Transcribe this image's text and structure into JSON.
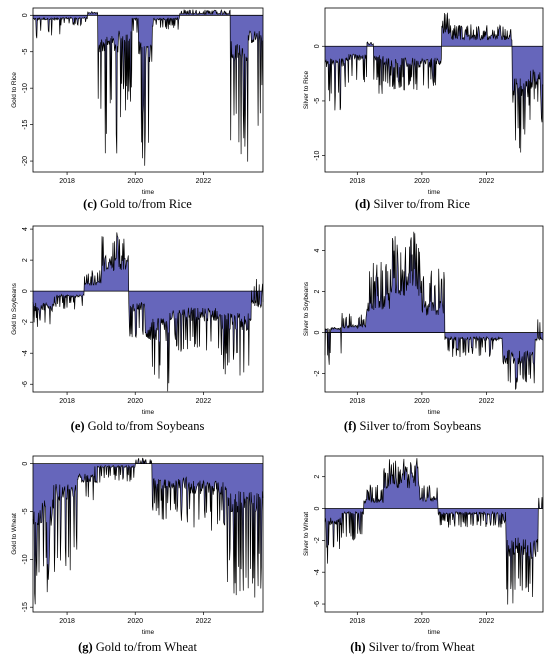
{
  "colors": {
    "fill": "#6666BB",
    "line": "#000000",
    "frame": "#000000"
  },
  "chart_data": [
    {
      "id": "c",
      "type": "area",
      "caption_letter": "(c)",
      "caption_text": "Gold to/from Rice",
      "ylabel": "Gold to Rice",
      "xlabel": "time",
      "x_ticks": [
        2018,
        2020,
        2022
      ],
      "y_ticks": [
        0,
        -5,
        -10,
        -15,
        -20
      ],
      "xlim": [
        2017,
        2023.75
      ],
      "ylim": [
        -21.5,
        1
      ],
      "segments": [
        {
          "from": 2017.0,
          "to": 2017.8,
          "base": -0.5,
          "spike": -3.5
        },
        {
          "from": 2017.8,
          "to": 2018.6,
          "base": -0.4,
          "spike": -1.5
        },
        {
          "from": 2018.6,
          "to": 2018.9,
          "base": 0.3,
          "spike": 0.5
        },
        {
          "from": 2018.9,
          "to": 2019.5,
          "base": -4,
          "spike": -19
        },
        {
          "from": 2019.5,
          "to": 2019.9,
          "base": -3,
          "spike": -15
        },
        {
          "from": 2019.9,
          "to": 2020.1,
          "base": -0.5,
          "spike": -3
        },
        {
          "from": 2020.1,
          "to": 2020.5,
          "base": -5,
          "spike": -21
        },
        {
          "from": 2020.5,
          "to": 2021.3,
          "base": -0.5,
          "spike": -2
        },
        {
          "from": 2021.3,
          "to": 2022.8,
          "base": 0.2,
          "spike": 0.8
        },
        {
          "from": 2022.8,
          "to": 2023.3,
          "base": -5,
          "spike": -21
        },
        {
          "from": 2023.3,
          "to": 2023.75,
          "base": -3,
          "spike": -17
        }
      ]
    },
    {
      "id": "d",
      "type": "area",
      "caption_letter": "(d)",
      "caption_text": "Silver to/from Rice",
      "ylabel": "Silver to Rice",
      "xlabel": "time",
      "x_ticks": [
        2018,
        2020,
        2022
      ],
      "y_ticks": [
        0,
        -5,
        -10
      ],
      "xlim": [
        2017,
        2023.75
      ],
      "ylim": [
        -11.5,
        3.5
      ],
      "segments": [
        {
          "from": 2017.0,
          "to": 2017.6,
          "base": -1.5,
          "spike": -6
        },
        {
          "from": 2017.6,
          "to": 2018.3,
          "base": -1,
          "spike": -4
        },
        {
          "from": 2018.3,
          "to": 2018.5,
          "base": 0.2,
          "spike": 0.5
        },
        {
          "from": 2018.5,
          "to": 2018.8,
          "base": -1,
          "spike": -4.5
        },
        {
          "from": 2018.8,
          "to": 2020.6,
          "base": -1.5,
          "spike": -4
        },
        {
          "from": 2020.6,
          "to": 2020.9,
          "base": 1.5,
          "spike": 3.3
        },
        {
          "from": 2020.9,
          "to": 2022.8,
          "base": 0.8,
          "spike": 2
        },
        {
          "from": 2022.8,
          "to": 2023.3,
          "base": -4,
          "spike": -11
        },
        {
          "from": 2023.3,
          "to": 2023.75,
          "base": -3,
          "spike": -7
        }
      ]
    },
    {
      "id": "e",
      "type": "area",
      "caption_letter": "(e)",
      "caption_text": "Gold to/from Soybeans",
      "ylabel": "Gold to Soybeans",
      "xlabel": "time",
      "x_ticks": [
        2018,
        2020,
        2022
      ],
      "y_ticks": [
        4,
        2,
        0,
        -2,
        -4,
        -6
      ],
      "xlim": [
        2017,
        2023.75
      ],
      "ylim": [
        -6.5,
        4.2
      ],
      "segments": [
        {
          "from": 2017.0,
          "to": 2017.6,
          "base": -1,
          "spike": -2.5
        },
        {
          "from": 2017.6,
          "to": 2018.5,
          "base": -0.3,
          "spike": -1.2
        },
        {
          "from": 2018.5,
          "to": 2019.0,
          "base": 0.5,
          "spike": 1.5
        },
        {
          "from": 2019.0,
          "to": 2019.8,
          "base": 1.8,
          "spike": 3.8
        },
        {
          "from": 2019.8,
          "to": 2020.3,
          "base": -1,
          "spike": -3
        },
        {
          "from": 2020.3,
          "to": 2021.0,
          "base": -2.5,
          "spike": -6.5
        },
        {
          "from": 2021.0,
          "to": 2022.5,
          "base": -1.5,
          "spike": -4
        },
        {
          "from": 2022.5,
          "to": 2023.4,
          "base": -2,
          "spike": -5.5
        },
        {
          "from": 2023.4,
          "to": 2023.75,
          "base": -0.8,
          "spike": 0.8
        }
      ]
    },
    {
      "id": "f",
      "type": "area",
      "caption_letter": "(f)",
      "caption_text": "Silver to/from Soybeans",
      "ylabel": "Silver to Soybeans",
      "xlabel": "time",
      "x_ticks": [
        2018,
        2020,
        2022
      ],
      "y_ticks": [
        4,
        2,
        0,
        -2
      ],
      "xlim": [
        2017,
        2023.75
      ],
      "ylim": [
        -2.9,
        5.2
      ],
      "segments": [
        {
          "from": 2017.0,
          "to": 2017.5,
          "base": 0.2,
          "spike": -1.6
        },
        {
          "from": 2017.5,
          "to": 2018.3,
          "base": 0.3,
          "spike": 1
        },
        {
          "from": 2018.3,
          "to": 2019.0,
          "base": 1.5,
          "spike": 3.5
        },
        {
          "from": 2019.0,
          "to": 2020.0,
          "base": 2.5,
          "spike": 5
        },
        {
          "from": 2020.0,
          "to": 2020.7,
          "base": 1.2,
          "spike": 3.2
        },
        {
          "from": 2020.7,
          "to": 2022.5,
          "base": -0.3,
          "spike": -1.2
        },
        {
          "from": 2022.5,
          "to": 2023.5,
          "base": -1.2,
          "spike": -2.8
        },
        {
          "from": 2023.5,
          "to": 2023.75,
          "base": -0.3,
          "spike": 0.8
        }
      ]
    },
    {
      "id": "g",
      "type": "area",
      "caption_letter": "(g)",
      "caption_text": "Gold to/from Wheat",
      "ylabel": "Gold to Wheat",
      "xlabel": "time",
      "x_ticks": [
        2018,
        2020,
        2022
      ],
      "y_ticks": [
        0,
        -5,
        -10,
        -15
      ],
      "xlim": [
        2017,
        2023.75
      ],
      "ylim": [
        -15.5,
        0.8
      ],
      "segments": [
        {
          "from": 2017.0,
          "to": 2017.6,
          "base": -5,
          "spike": -15
        },
        {
          "from": 2017.6,
          "to": 2018.3,
          "base": -3,
          "spike": -13
        },
        {
          "from": 2018.3,
          "to": 2018.8,
          "base": -1.5,
          "spike": -5
        },
        {
          "from": 2018.8,
          "to": 2020.0,
          "base": -0.3,
          "spike": -2
        },
        {
          "from": 2020.0,
          "to": 2020.5,
          "base": 0,
          "spike": 0.6
        },
        {
          "from": 2020.5,
          "to": 2021.5,
          "base": -2,
          "spike": -6
        },
        {
          "from": 2021.5,
          "to": 2022.7,
          "base": -2.5,
          "spike": -7
        },
        {
          "from": 2022.7,
          "to": 2023.75,
          "base": -4,
          "spike": -14
        }
      ]
    },
    {
      "id": "h",
      "type": "area",
      "caption_letter": "(h)",
      "caption_text": "Silver to/from Wheat",
      "ylabel": "Silver to Wheat",
      "xlabel": "time",
      "x_ticks": [
        2018,
        2020,
        2022
      ],
      "y_ticks": [
        2,
        0,
        -2,
        -4,
        -6
      ],
      "xlim": [
        2017,
        2023.75
      ],
      "ylim": [
        -6.5,
        3.3
      ],
      "segments": [
        {
          "from": 2017.0,
          "to": 2017.5,
          "base": -0.8,
          "spike": -3.5
        },
        {
          "from": 2017.5,
          "to": 2018.2,
          "base": -0.3,
          "spike": -2
        },
        {
          "from": 2018.2,
          "to": 2018.8,
          "base": 0.5,
          "spike": 1.5
        },
        {
          "from": 2018.8,
          "to": 2019.9,
          "base": 1.8,
          "spike": 3.2
        },
        {
          "from": 2019.9,
          "to": 2020.5,
          "base": 0.6,
          "spike": 1.5
        },
        {
          "from": 2020.5,
          "to": 2022.6,
          "base": -0.3,
          "spike": -1.2
        },
        {
          "from": 2022.6,
          "to": 2023.6,
          "base": -2.5,
          "spike": -6.5
        },
        {
          "from": 2023.6,
          "to": 2023.75,
          "base": 0,
          "spike": 1
        }
      ]
    }
  ]
}
